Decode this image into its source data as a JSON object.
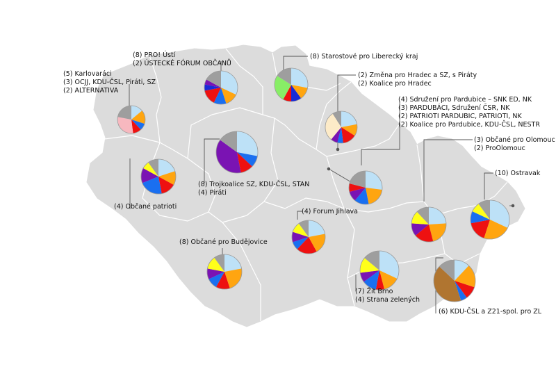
{
  "colors": {
    "land": "#dcdcdc",
    "border": "#ffffff",
    "leader": "#555555",
    "palette": {
      "light_blue": "#bde1f7",
      "orange": "#ffa510",
      "red": "#ee1111",
      "blue": "#1a6ff0",
      "dark_blue": "#1a2ad6",
      "purple": "#7a13b3",
      "yellow": "#ffff1a",
      "gray": "#9e9e9e",
      "green": "#88ee66",
      "pink": "#f7b8bf",
      "cream": "#fdebc8",
      "brown": "#b07530"
    }
  },
  "regions": [
    {
      "id": "karlovy-vary",
      "labels": [
        "(5) Karlovaráci",
        "(3) OCJJ, KDU-ČSL, Piráti, SZ",
        "(2) ALTERNATIVA"
      ],
      "slices": [
        [
          "light_blue",
          14
        ],
        [
          "orange",
          16
        ],
        [
          "blue",
          8
        ],
        [
          "red",
          10
        ],
        [
          "pink",
          30
        ],
        [
          "gray",
          22
        ]
      ]
    },
    {
      "id": "usti",
      "labels": [
        "(8) PRO! Ústí",
        "(2) ÚSTECKÉ FÓRUM OBČANŮ"
      ],
      "slices": [
        [
          "light_blue",
          32
        ],
        [
          "orange",
          13
        ],
        [
          "blue",
          12
        ],
        [
          "red",
          15
        ],
        [
          "dark_blue",
          6
        ],
        [
          "purple",
          5
        ],
        [
          "gray",
          17
        ]
      ]
    },
    {
      "id": "liberec",
      "labels": [
        "(8) Starostové pro Liberecký kraj"
      ],
      "slices": [
        [
          "light_blue",
          28
        ],
        [
          "orange",
          12
        ],
        [
          "dark_blue",
          10
        ],
        [
          "red",
          8
        ],
        [
          "green",
          26
        ],
        [
          "gray",
          16
        ]
      ]
    },
    {
      "id": "hradec",
      "labels": [
        "(2) Změna pro Hradec a SZ, s Piráty",
        "(2) Koalice pro Hradec"
      ],
      "slices": [
        [
          "light_blue",
          22
        ],
        [
          "orange",
          12
        ],
        [
          "red",
          14
        ],
        [
          "blue",
          6
        ],
        [
          "purple",
          7
        ],
        [
          "cream",
          30
        ],
        [
          "gray",
          9
        ]
      ]
    },
    {
      "id": "praha",
      "labels": [
        "(8) Trojkoalice SZ, KDU-ČSL, STAN",
        "(4) Piráti"
      ],
      "slices": [
        [
          "light_blue",
          28
        ],
        [
          "blue",
          9
        ],
        [
          "red",
          10
        ],
        [
          "purple",
          38
        ],
        [
          "gray",
          15
        ]
      ]
    },
    {
      "id": "plzen",
      "labels": [
        "(4) Občané patrioti"
      ],
      "slices": [
        [
          "light_blue",
          20
        ],
        [
          "orange",
          13
        ],
        [
          "red",
          14
        ],
        [
          "blue",
          22
        ],
        [
          "purple",
          14
        ],
        [
          "yellow",
          7
        ],
        [
          "gray",
          10
        ]
      ]
    },
    {
      "id": "pardubice",
      "labels": [
        "(4) Sdružení pro Pardubice – SNK ED, NK",
        "(3) PARDUBÁCI, Sdružení ČSR, NK",
        "(2) PATRIOTI PARDUBIC, PATRIOTI, NK",
        "(2) Koalice pro Pardubice, KDU-ČSL, NESTR"
      ],
      "slices": [
        [
          "light_blue",
          27
        ],
        [
          "orange",
          20
        ],
        [
          "blue",
          14
        ],
        [
          "purple",
          10
        ],
        [
          "red",
          8
        ],
        [
          "gray",
          21
        ]
      ]
    },
    {
      "id": "olomouc",
      "labels": [
        "(3) Občané pro Olomouc",
        "(2) ProOlomouc"
      ],
      "slices": [
        [
          "light_blue",
          24
        ],
        [
          "orange",
          22
        ],
        [
          "red",
          18
        ],
        [
          "purple",
          12
        ],
        [
          "yellow",
          12
        ],
        [
          "gray",
          12
        ]
      ]
    },
    {
      "id": "ostrava",
      "labels": [
        "(10) Ostravak"
      ],
      "slices": [
        [
          "light_blue",
          32
        ],
        [
          "orange",
          23
        ],
        [
          "red",
          17
        ],
        [
          "blue",
          10
        ],
        [
          "yellow",
          8
        ],
        [
          "gray",
          10
        ]
      ]
    },
    {
      "id": "jihlava",
      "labels": [
        "(4) Forum Jihlava"
      ],
      "slices": [
        [
          "light_blue",
          22
        ],
        [
          "orange",
          20
        ],
        [
          "red",
          20
        ],
        [
          "blue",
          8
        ],
        [
          "purple",
          10
        ],
        [
          "yellow",
          10
        ],
        [
          "gray",
          10
        ]
      ]
    },
    {
      "id": "budejovice",
      "labels": [
        "(8) Občané pro Budějovice"
      ],
      "slices": [
        [
          "light_blue",
          22
        ],
        [
          "orange",
          23
        ],
        [
          "red",
          13
        ],
        [
          "blue",
          10
        ],
        [
          "purple",
          10
        ],
        [
          "yellow",
          12
        ],
        [
          "gray",
          10
        ]
      ]
    },
    {
      "id": "brno",
      "labels": [
        "(7) Žít Brno",
        "(4) Strana zelených"
      ],
      "slices": [
        [
          "light_blue",
          32
        ],
        [
          "orange",
          14
        ],
        [
          "red",
          7
        ],
        [
          "blue",
          12
        ],
        [
          "purple",
          8
        ],
        [
          "yellow",
          13
        ],
        [
          "gray",
          14
        ]
      ]
    },
    {
      "id": "zlin",
      "labels": [
        "(6) KDU-ČSL a Z21-spol. pro ZL"
      ],
      "slices": [
        [
          "light_blue",
          12
        ],
        [
          "orange",
          18
        ],
        [
          "red",
          10
        ],
        [
          "blue",
          5
        ],
        [
          "brown",
          42
        ],
        [
          "gray",
          13
        ]
      ]
    }
  ]
}
